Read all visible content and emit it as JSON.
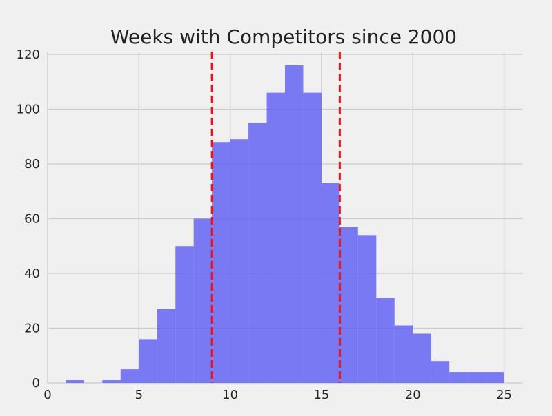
{
  "chart_data": {
    "type": "histogram",
    "title": "Weeks with Competitors since 2000",
    "xlabel": "",
    "ylabel": "",
    "xlim": [
      0,
      26
    ],
    "ylim": [
      0,
      121
    ],
    "x_ticks": [
      0,
      5,
      10,
      15,
      20,
      25
    ],
    "y_ticks": [
      0,
      20,
      40,
      60,
      80,
      100,
      120
    ],
    "grid": true,
    "bin_edges": [
      1,
      2,
      3,
      4,
      5,
      6,
      7,
      8,
      9,
      10,
      11,
      12,
      13,
      14,
      15,
      16,
      17,
      18,
      19,
      20,
      21,
      22,
      23,
      24,
      25
    ],
    "counts": [
      1,
      0,
      1,
      5,
      16,
      27,
      50,
      60,
      88,
      89,
      95,
      106,
      116,
      106,
      73,
      57,
      54,
      31,
      21,
      18,
      8,
      4,
      4,
      4
    ],
    "vertical_lines": [
      {
        "x": 9,
        "style": "dashed",
        "color": "#e8141b"
      },
      {
        "x": 16,
        "style": "dashed",
        "color": "#e8141b"
      }
    ],
    "bar_color": "#5b5bf5",
    "bar_opacity": 0.8
  }
}
